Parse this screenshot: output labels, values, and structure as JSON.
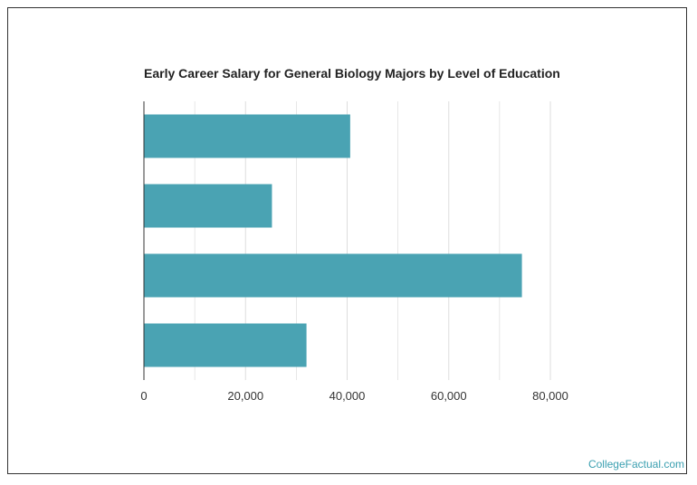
{
  "chart_data": {
    "type": "bar",
    "orientation": "horizontal",
    "title": "Early Career Salary for General Biology Majors by Level of Education",
    "categories": [
      "",
      "",
      "",
      ""
    ],
    "values": [
      40600,
      25200,
      74400,
      32000
    ],
    "xlim": [
      0,
      80000
    ],
    "x_ticks": [
      0,
      20000,
      40000,
      60000,
      80000
    ],
    "x_tick_labels": [
      "0",
      "20,000",
      "40,000",
      "60,000",
      "80,000"
    ],
    "xlabel": "",
    "ylabel": "",
    "grid": true,
    "bar_color": "#4aa3b3",
    "grid_color": "#dddddd"
  },
  "footer": {
    "credit": "CollegeFactual.com",
    "credit_color": "#3a9fb0"
  }
}
